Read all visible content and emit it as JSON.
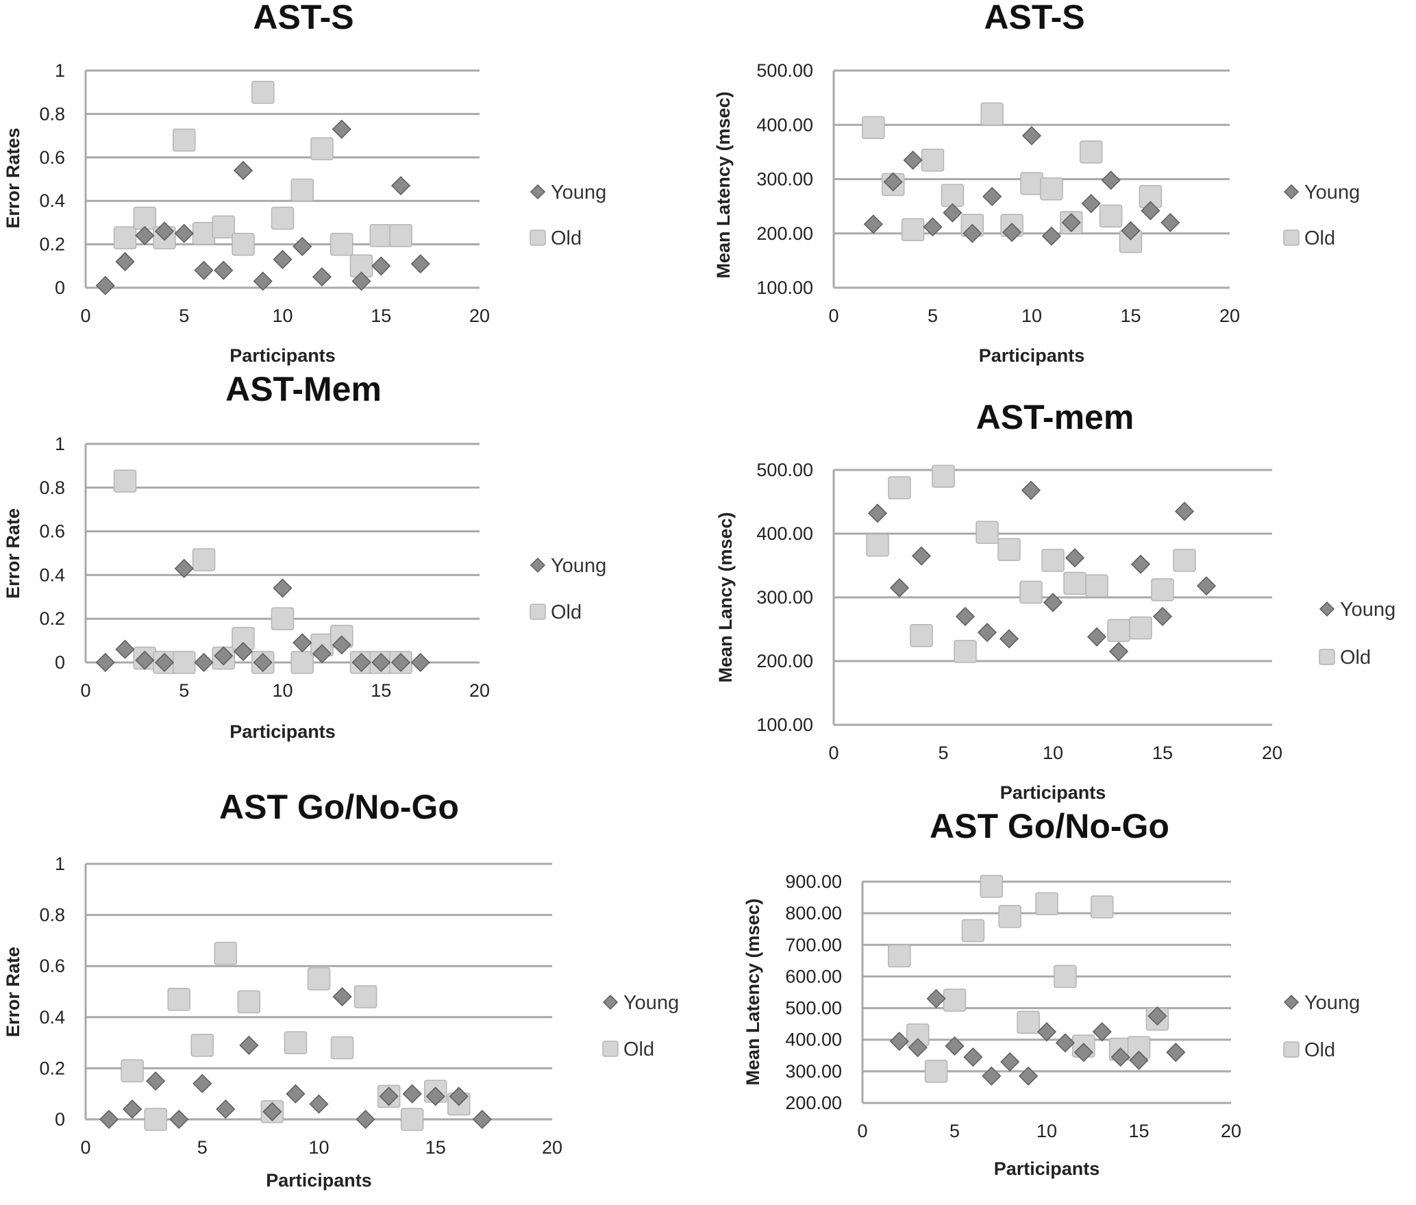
{
  "colors": {
    "young_fill": "#8a8a8a",
    "young_stroke": "#5c5c5c",
    "old_fill": "#d4d4d4",
    "old_stroke": "#b4b4b4",
    "grid": "#a9a9a9",
    "title": "#111111",
    "text": "#222222"
  },
  "chart_data": [
    {
      "id": "ast-s-error",
      "type": "scatter",
      "title": "AST-S",
      "xlabel": "Participants",
      "ylabel": "Error Rates",
      "xlim": [
        0,
        20
      ],
      "ylim": [
        0,
        1
      ],
      "x_ticks": [
        "0",
        "5",
        "10",
        "15",
        "20"
      ],
      "y_ticks": [
        "0",
        "0.2",
        "0.4",
        "0.6",
        "0.8",
        "1"
      ],
      "grid": "horizontal",
      "legend": "right",
      "series": [
        {
          "name": "Young",
          "marker": "diamond",
          "x": [
            1,
            2,
            3,
            4,
            5,
            6,
            7,
            8,
            9,
            10,
            11,
            12,
            13,
            14,
            15,
            16,
            17
          ],
          "y": [
            0.01,
            0.12,
            0.24,
            0.26,
            0.25,
            0.08,
            0.08,
            0.54,
            0.03,
            0.13,
            0.19,
            0.05,
            0.73,
            0.03,
            0.1,
            0.47,
            0.11
          ]
        },
        {
          "name": "Old",
          "marker": "square",
          "x": [
            2,
            3,
            4,
            5,
            6,
            7,
            8,
            9,
            10,
            11,
            12,
            13,
            14,
            15,
            16
          ],
          "y": [
            0.23,
            0.32,
            0.23,
            0.68,
            0.25,
            0.28,
            0.2,
            0.9,
            0.32,
            0.45,
            0.64,
            0.2,
            0.1,
            0.24,
            0.24
          ]
        }
      ]
    },
    {
      "id": "ast-s-latency",
      "type": "scatter",
      "title": "AST-S",
      "xlabel": "Participants",
      "ylabel": "Mean Latency (msec)",
      "xlim": [
        0,
        20
      ],
      "ylim": [
        100,
        500
      ],
      "x_ticks": [
        "0",
        "5",
        "10",
        "15",
        "20"
      ],
      "y_ticks": [
        "100.00",
        "200.00",
        "300.00",
        "400.00",
        "500.00"
      ],
      "grid": "horizontal",
      "legend": "right",
      "series": [
        {
          "name": "Young",
          "marker": "diamond",
          "x": [
            2,
            3,
            4,
            5,
            6,
            7,
            8,
            9,
            10,
            11,
            12,
            13,
            14,
            15,
            16,
            17
          ],
          "y": [
            217,
            295,
            335,
            212,
            238,
            200,
            268,
            202,
            380,
            195,
            220,
            255,
            298,
            205,
            242,
            220
          ]
        },
        {
          "name": "Old",
          "marker": "square",
          "x": [
            2,
            3,
            4,
            5,
            6,
            7,
            8,
            9,
            10,
            11,
            12,
            13,
            14,
            15,
            16
          ],
          "y": [
            395,
            290,
            207,
            335,
            270,
            215,
            420,
            215,
            292,
            282,
            220,
            350,
            232,
            185,
            268
          ]
        }
      ]
    },
    {
      "id": "ast-mem-error",
      "type": "scatter",
      "title": "AST-Mem",
      "xlabel": "Participants",
      "ylabel": "Error Rate",
      "xlim": [
        0,
        20
      ],
      "ylim": [
        0,
        1
      ],
      "x_ticks": [
        "0",
        "5",
        "10",
        "15",
        "20"
      ],
      "y_ticks": [
        "0",
        "0.2",
        "0.4",
        "0.6",
        "0.8",
        "1"
      ],
      "grid": "horizontal",
      "legend": "right",
      "series": [
        {
          "name": "Young",
          "marker": "diamond",
          "x": [
            1,
            2,
            3,
            4,
            5,
            6,
            7,
            8,
            9,
            10,
            11,
            12,
            13,
            14,
            15,
            16,
            17
          ],
          "y": [
            0.0,
            0.06,
            0.01,
            0.0,
            0.43,
            0.0,
            0.03,
            0.05,
            0.0,
            0.34,
            0.09,
            0.04,
            0.08,
            0.0,
            0.0,
            0.0,
            0.0
          ]
        },
        {
          "name": "Old",
          "marker": "square",
          "x": [
            2,
            3,
            4,
            5,
            6,
            7,
            8,
            9,
            10,
            11,
            12,
            13,
            14,
            15,
            16
          ],
          "y": [
            0.83,
            0.02,
            0.0,
            0.0,
            0.47,
            0.02,
            0.11,
            0.0,
            0.2,
            0.0,
            0.08,
            0.12,
            0.0,
            0.0,
            0.0
          ]
        }
      ]
    },
    {
      "id": "ast-mem-latency",
      "type": "scatter",
      "title": "AST-mem",
      "xlabel": "Participants",
      "ylabel": "Mean Lancy (msec)",
      "xlim": [
        0,
        20
      ],
      "ylim": [
        100,
        500
      ],
      "x_ticks": [
        "0",
        "5",
        "10",
        "15",
        "20"
      ],
      "y_ticks": [
        "100.00",
        "200.00",
        "300.00",
        "400.00",
        "500.00"
      ],
      "grid": "horizontal",
      "legend": "right",
      "series": [
        {
          "name": "Young",
          "marker": "diamond",
          "x": [
            2,
            3,
            4,
            6,
            7,
            8,
            9,
            10,
            11,
            12,
            13,
            14,
            15,
            16,
            17
          ],
          "y": [
            432,
            315,
            365,
            270,
            245,
            235,
            468,
            292,
            362,
            238,
            215,
            352,
            270,
            435,
            318
          ]
        },
        {
          "name": "Old",
          "marker": "square",
          "x": [
            2,
            3,
            4,
            5,
            6,
            7,
            8,
            9,
            10,
            11,
            12,
            13,
            14,
            15,
            16
          ],
          "y": [
            382,
            472,
            240,
            490,
            215,
            402,
            375,
            308,
            358,
            322,
            318,
            248,
            252,
            312,
            358
          ]
        }
      ]
    },
    {
      "id": "ast-gonogo-error",
      "type": "scatter",
      "title": "AST Go/No-Go",
      "xlabel": "Participants",
      "ylabel": "Error Rate",
      "xlim": [
        0,
        20
      ],
      "ylim": [
        0,
        1
      ],
      "x_ticks": [
        "0",
        "5",
        "10",
        "15",
        "20"
      ],
      "y_ticks": [
        "0",
        "0.2",
        "0.4",
        "0.6",
        "0.8",
        "1"
      ],
      "grid": "horizontal",
      "legend": "right",
      "series": [
        {
          "name": "Young",
          "marker": "diamond",
          "x": [
            1,
            2,
            3,
            4,
            5,
            6,
            7,
            8,
            9,
            10,
            11,
            12,
            13,
            14,
            15,
            16,
            17
          ],
          "y": [
            0.0,
            0.04,
            0.15,
            0.0,
            0.14,
            0.04,
            0.29,
            0.03,
            0.1,
            0.06,
            0.48,
            0.0,
            0.09,
            0.1,
            0.09,
            0.09,
            0.0
          ]
        },
        {
          "name": "Old",
          "marker": "square",
          "x": [
            2,
            3,
            4,
            5,
            6,
            7,
            8,
            9,
            10,
            11,
            12,
            13,
            14,
            15,
            16
          ],
          "y": [
            0.19,
            0.0,
            0.47,
            0.29,
            0.65,
            0.46,
            0.03,
            0.3,
            0.55,
            0.28,
            0.48,
            0.09,
            0.0,
            0.11,
            0.06
          ]
        }
      ]
    },
    {
      "id": "ast-gonogo-latency",
      "type": "scatter",
      "title": "AST Go/No-Go",
      "xlabel": "Participants",
      "ylabel": "Mean Latency (msec)",
      "xlim": [
        0,
        20
      ],
      "ylim": [
        200,
        900
      ],
      "x_ticks": [
        "0",
        "5",
        "10",
        "15",
        "20"
      ],
      "y_ticks": [
        "200.00",
        "300.00",
        "400.00",
        "500.00",
        "600.00",
        "700.00",
        "800.00",
        "900.00"
      ],
      "grid": "horizontal",
      "legend": "right",
      "series": [
        {
          "name": "Young",
          "marker": "diamond",
          "x": [
            2,
            3,
            4,
            5,
            6,
            7,
            8,
            9,
            10,
            11,
            12,
            13,
            14,
            15,
            16,
            17
          ],
          "y": [
            395,
            375,
            530,
            380,
            345,
            285,
            330,
            285,
            425,
            390,
            360,
            425,
            345,
            335,
            475,
            360
          ]
        },
        {
          "name": "Old",
          "marker": "square",
          "x": [
            2,
            3,
            4,
            5,
            6,
            7,
            8,
            9,
            10,
            11,
            12,
            13,
            14,
            15,
            16
          ],
          "y": [
            665,
            415,
            300,
            525,
            745,
            885,
            790,
            455,
            830,
            600,
            380,
            820,
            370,
            375,
            465
          ]
        }
      ]
    }
  ]
}
